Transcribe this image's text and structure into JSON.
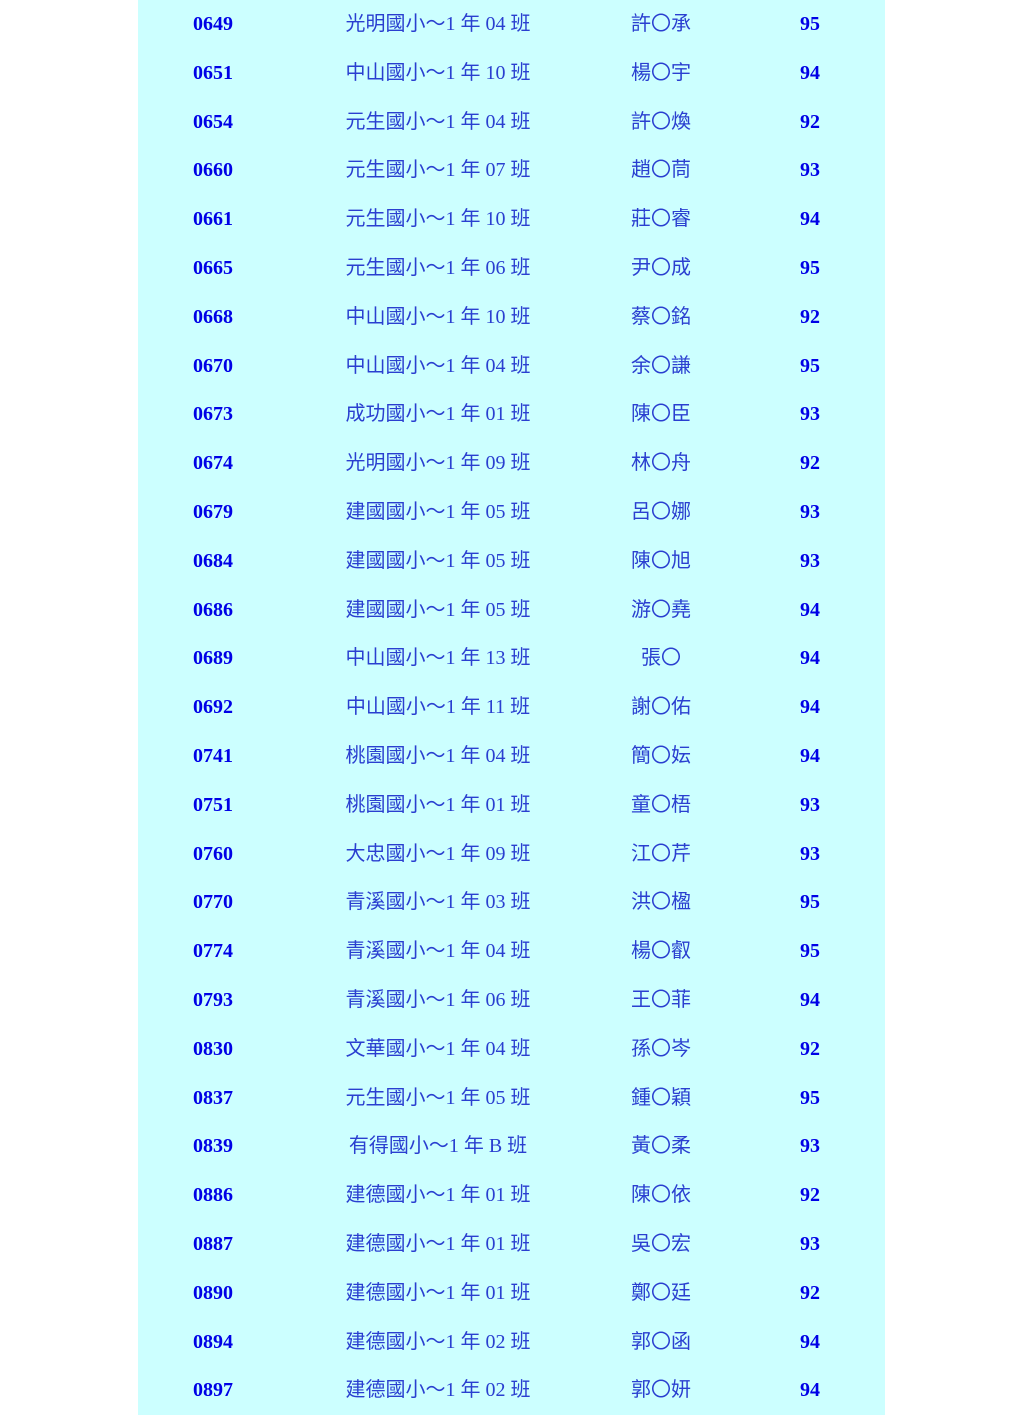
{
  "colors": {
    "background": "#ccffff",
    "id_text": "#0000e6",
    "school_text": "#2a3fd0"
  },
  "rows": [
    {
      "id": "0649",
      "school": "光明國小～1 年 04 班",
      "name": "許〇承",
      "score": "95"
    },
    {
      "id": "0651",
      "school": "中山國小～1 年 10 班",
      "name": "楊〇宇",
      "score": "94"
    },
    {
      "id": "0654",
      "school": "元生國小～1 年 04 班",
      "name": "許〇煥",
      "score": "92"
    },
    {
      "id": "0660",
      "school": "元生國小～1 年 07 班",
      "name": "趙〇茼",
      "score": "93"
    },
    {
      "id": "0661",
      "school": "元生國小～1 年 10 班",
      "name": "莊〇睿",
      "score": "94"
    },
    {
      "id": "0665",
      "school": "元生國小～1 年 06 班",
      "name": "尹〇成",
      "score": "95"
    },
    {
      "id": "0668",
      "school": "中山國小～1 年 10 班",
      "name": "蔡〇銘",
      "score": "92"
    },
    {
      "id": "0670",
      "school": "中山國小～1 年 04 班",
      "name": "余〇謙",
      "score": "95"
    },
    {
      "id": "0673",
      "school": "成功國小～1 年 01 班",
      "name": "陳〇臣",
      "score": "93"
    },
    {
      "id": "0674",
      "school": "光明國小～1 年 09 班",
      "name": "林〇舟",
      "score": "92"
    },
    {
      "id": "0679",
      "school": "建國國小～1 年 05 班",
      "name": "呂〇娜",
      "score": "93"
    },
    {
      "id": "0684",
      "school": "建國國小～1 年 05 班",
      "name": "陳〇旭",
      "score": "93"
    },
    {
      "id": "0686",
      "school": "建國國小～1 年 05 班",
      "name": "游〇堯",
      "score": "94"
    },
    {
      "id": "0689",
      "school": "中山國小～1 年 13 班",
      "name": "張〇",
      "score": "94"
    },
    {
      "id": "0692",
      "school": "中山國小～1 年 11 班",
      "name": "謝〇佑",
      "score": "94"
    },
    {
      "id": "0741",
      "school": "桃園國小～1 年 04 班",
      "name": "簡〇妘",
      "score": "94"
    },
    {
      "id": "0751",
      "school": "桃園國小～1 年 01 班",
      "name": "童〇梧",
      "score": "93"
    },
    {
      "id": "0760",
      "school": "大忠國小～1 年 09 班",
      "name": "江〇芹",
      "score": "93"
    },
    {
      "id": "0770",
      "school": "青溪國小～1 年 03 班",
      "name": "洪〇楹",
      "score": "95"
    },
    {
      "id": "0774",
      "school": "青溪國小～1 年 04 班",
      "name": "楊〇叡",
      "score": "95"
    },
    {
      "id": "0793",
      "school": "青溪國小～1 年 06 班",
      "name": "王〇菲",
      "score": "94"
    },
    {
      "id": "0830",
      "school": "文華國小～1 年 04 班",
      "name": "孫〇岑",
      "score": "92"
    },
    {
      "id": "0837",
      "school": "元生國小～1 年 05 班",
      "name": "鍾〇穎",
      "score": "95"
    },
    {
      "id": "0839",
      "school": "有得國小～1 年 B 班",
      "name": "黃〇柔",
      "score": "93"
    },
    {
      "id": "0886",
      "school": "建德國小～1 年 01 班",
      "name": "陳〇依",
      "score": "92"
    },
    {
      "id": "0887",
      "school": "建德國小～1 年 01 班",
      "name": "吳〇宏",
      "score": "93"
    },
    {
      "id": "0890",
      "school": "建德國小～1 年 01 班",
      "name": "鄭〇廷",
      "score": "92"
    },
    {
      "id": "0894",
      "school": "建德國小～1 年 02 班",
      "name": "郭〇函",
      "score": "94"
    },
    {
      "id": "0897",
      "school": "建德國小～1 年 02 班",
      "name": "郭〇妍",
      "score": "94"
    }
  ]
}
